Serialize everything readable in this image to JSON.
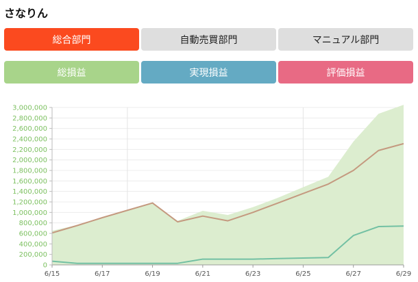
{
  "page": {
    "title": "さなりん"
  },
  "division_tabs": [
    {
      "label": "総合部門",
      "active": true
    },
    {
      "label": "自動売買部門",
      "active": false
    },
    {
      "label": "マニュアル部門",
      "active": false
    }
  ],
  "metric_buttons": [
    {
      "label": "総損益",
      "color": "#a8d48a"
    },
    {
      "label": "実現損益",
      "color": "#64aac3"
    },
    {
      "label": "評価損益",
      "color": "#e86a84"
    }
  ],
  "chart_data": {
    "type": "line",
    "x": [
      "6/15",
      "6/16",
      "6/17",
      "6/18",
      "6/19",
      "6/20",
      "6/21",
      "6/22",
      "6/23",
      "6/24",
      "6/25",
      "6/26",
      "6/27",
      "6/28",
      "6/29"
    ],
    "x_tick_labels": [
      "6/15",
      "6/17",
      "6/19",
      "6/21",
      "6/23",
      "6/25",
      "6/27",
      "6/29"
    ],
    "y_tick_labels": [
      "0",
      "200,000",
      "400,000",
      "600,000",
      "800,000",
      "1,000,000",
      "1,200,000",
      "1,400,000",
      "1,600,000",
      "1,800,000",
      "2,000,000",
      "2,200,000",
      "2,400,000",
      "2,600,000",
      "2,800,000",
      "3,000,000"
    ],
    "ylim": [
      0,
      3000000
    ],
    "series": [
      {
        "type": "area",
        "color": "#dcedcf",
        "values": [
          650000,
          760000,
          900000,
          1040000,
          1170000,
          840000,
          1030000,
          950000,
          1100000,
          1280000,
          1480000,
          1680000,
          2350000,
          2880000,
          3050000
        ]
      },
      {
        "type": "line",
        "color": "#c4997f",
        "values": [
          610000,
          750000,
          900000,
          1040000,
          1180000,
          820000,
          930000,
          840000,
          1000000,
          1180000,
          1360000,
          1540000,
          1800000,
          2180000,
          2310000
        ]
      },
      {
        "type": "line",
        "color": "#72c0a3",
        "values": [
          70000,
          30000,
          30000,
          30000,
          30000,
          30000,
          110000,
          110000,
          110000,
          120000,
          130000,
          140000,
          560000,
          730000,
          740000
        ]
      }
    ]
  }
}
